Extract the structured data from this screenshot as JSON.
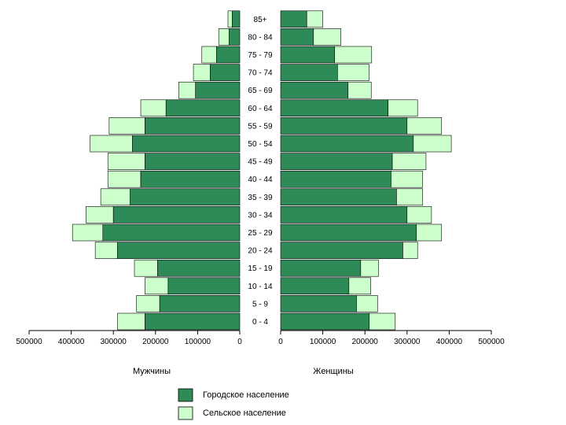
{
  "chart_data": {
    "type": "bar",
    "categories": [
      "0 - 4",
      "5 - 9",
      "10 - 14",
      "15 - 19",
      "20 - 24",
      "25 - 29",
      "30 - 34",
      "35 - 39",
      "40 - 44",
      "45 - 49",
      "50 - 54",
      "55 - 59",
      "60 - 64",
      "65 - 69",
      "70 - 74",
      "75 - 79",
      "80 - 84",
      "85+"
    ],
    "category_labels": [
      "0 - 4",
      "5 - 9",
      "10 - 14",
      "15 - 19",
      "20 - 24",
      "25 - 29",
      "30 - 34",
      "35 - 39",
      "40 - 44",
      "45 - 49",
      "50 - 54",
      "55 - 59",
      "60 - 64",
      "65 - 69",
      "70 - 74",
      "75 - 79",
      "80 - 84",
      "85+"
    ],
    "men_label": "Мужчины",
    "women_label": "Женщины",
    "series": [
      {
        "name": "Городское население",
        "color": "#2e8b57",
        "men": [
          225000,
          190000,
          170000,
          195000,
          290000,
          325000,
          300000,
          260000,
          235000,
          225000,
          255000,
          225000,
          175000,
          105000,
          70000,
          55000,
          25000,
          18000
        ],
        "women": [
          210000,
          180000,
          162000,
          190000,
          290000,
          322000,
          300000,
          275000,
          262000,
          265000,
          315000,
          300000,
          255000,
          160000,
          135000,
          128000,
          78000,
          62000
        ]
      },
      {
        "name": "Сельское население",
        "color": "#ccffcc",
        "men": [
          65000,
          55000,
          55000,
          55000,
          53000,
          72000,
          65000,
          70000,
          78000,
          88000,
          100000,
          85000,
          60000,
          40000,
          40000,
          35000,
          25000,
          10000
        ],
        "women": [
          62000,
          50000,
          52000,
          42000,
          35000,
          60000,
          58000,
          62000,
          75000,
          80000,
          90000,
          82000,
          70000,
          55000,
          75000,
          88000,
          65000,
          38000
        ]
      }
    ],
    "men_axis": {
      "range": [
        500000,
        0
      ],
      "ticks": [
        500000,
        400000,
        300000,
        200000,
        100000,
        0
      ]
    },
    "women_axis": {
      "range": [
        0,
        500000
      ],
      "ticks": [
        0,
        100000,
        200000,
        300000,
        400000,
        500000
      ]
    },
    "legend_placement": "bottom-center"
  }
}
